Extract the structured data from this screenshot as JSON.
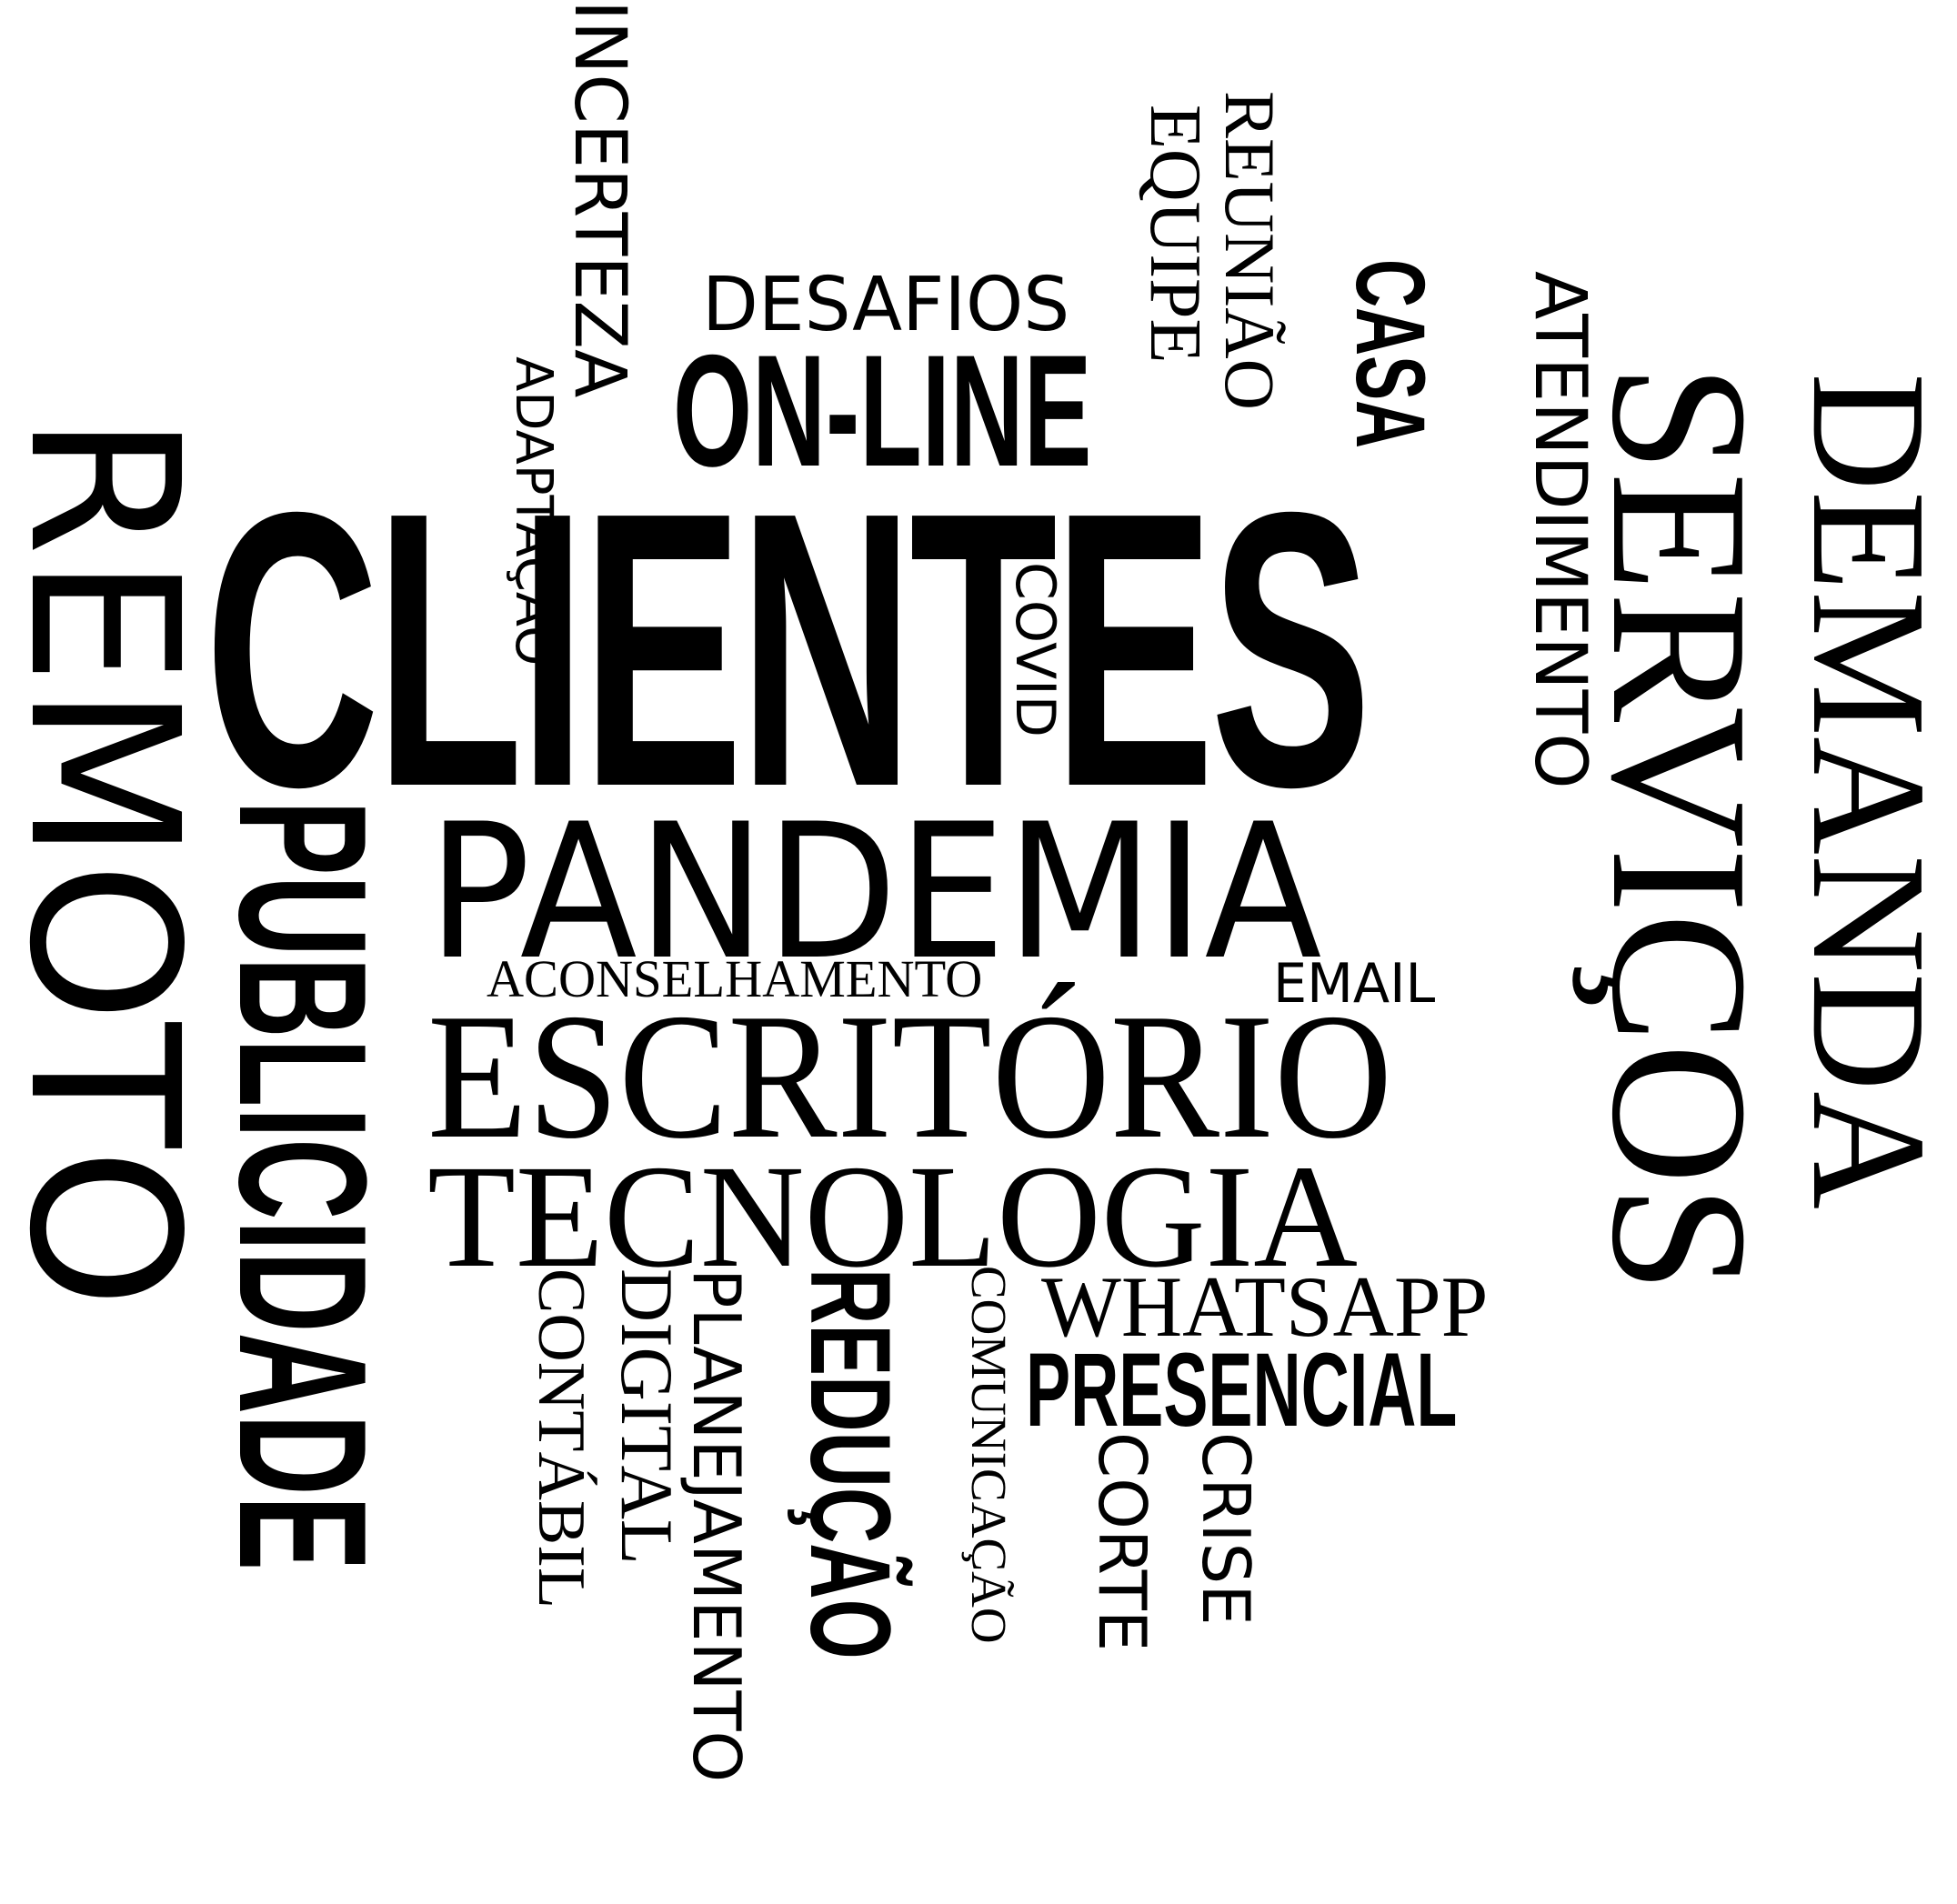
{
  "words": {
    "clientes": "CLIENTES",
    "remoto": "REMOTO",
    "pandemia": "PANDEMIA",
    "escritorio": "ESCRITÓRIO",
    "tecnologia": "TECNOLOGIA",
    "servicos": "SERVIÇOS",
    "demanda": "DEMANDA",
    "publicidade": "PUBLICIDADE",
    "online": "ON-LINE",
    "desafios": "DESAFIOS",
    "incerteza": "INCERTEZA",
    "adaptacao": "ADAPTAÇÃO",
    "equipe": "EQUIPE",
    "reuniao": "REUNIÃO",
    "casa": "CASA",
    "atendimento": "ATENDIMENTO",
    "covid": "COVID",
    "aconselhamento": "ACONSELHAMENTO",
    "email": "EMAIL",
    "whatsapp": "WHATSAPP",
    "presencial": "PRESENCIAL",
    "contabil": "CONTÁBIL",
    "digital": "DIGITAL",
    "planejamento": "PLANEJAMENTO",
    "reducao": "REDUÇÃO",
    "comunicacao": "COMUNICAÇÃO",
    "corte": "CORTE",
    "crise": "CRISE"
  }
}
